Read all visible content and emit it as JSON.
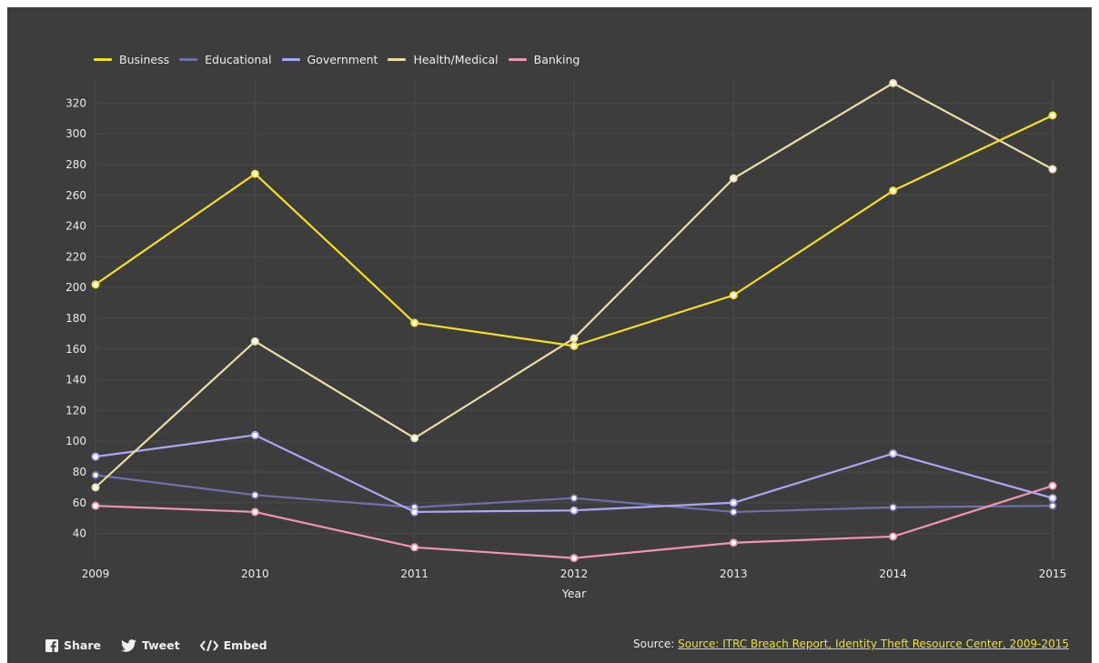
{
  "chart_data": {
    "type": "line",
    "x": [
      2009,
      2010,
      2011,
      2012,
      2013,
      2014,
      2015
    ],
    "xlabel": "Year",
    "ylabel": "",
    "ylim": [
      22,
      335
    ],
    "yticks": [
      40,
      60,
      80,
      100,
      120,
      140,
      160,
      180,
      200,
      220,
      240,
      260,
      280,
      300,
      320
    ],
    "grid": true,
    "legend_position": "top-left",
    "series": [
      {
        "name": "Business",
        "color": "#f5de24",
        "values": [
          202,
          274,
          177,
          162,
          195,
          263,
          312
        ]
      },
      {
        "name": "Educational",
        "color": "#6f6fab",
        "values": [
          78,
          65,
          57,
          63,
          54,
          57,
          58
        ]
      },
      {
        "name": "Government",
        "color": "#a9a8f4",
        "values": [
          90,
          104,
          54,
          55,
          60,
          92,
          63
        ]
      },
      {
        "name": "Health/Medical",
        "color": "#ecdca8",
        "values": [
          70,
          165,
          102,
          167,
          271,
          333,
          277
        ]
      },
      {
        "name": "Banking",
        "color": "#ee94b5",
        "values": [
          58,
          54,
          31,
          24,
          34,
          38,
          71
        ]
      }
    ]
  },
  "footer": {
    "share_label": "Share",
    "tweet_label": "Tweet",
    "embed_label": "Embed",
    "source_prefix": "Source:",
    "source_link_text": "Source: ITRC Breach Report, Identity Theft Resource Center, 2009-2015"
  },
  "colors": {
    "background": "#3d3d3d",
    "grid": "#4a4a4a",
    "text": "#ececec",
    "link": "#f0e02a"
  }
}
